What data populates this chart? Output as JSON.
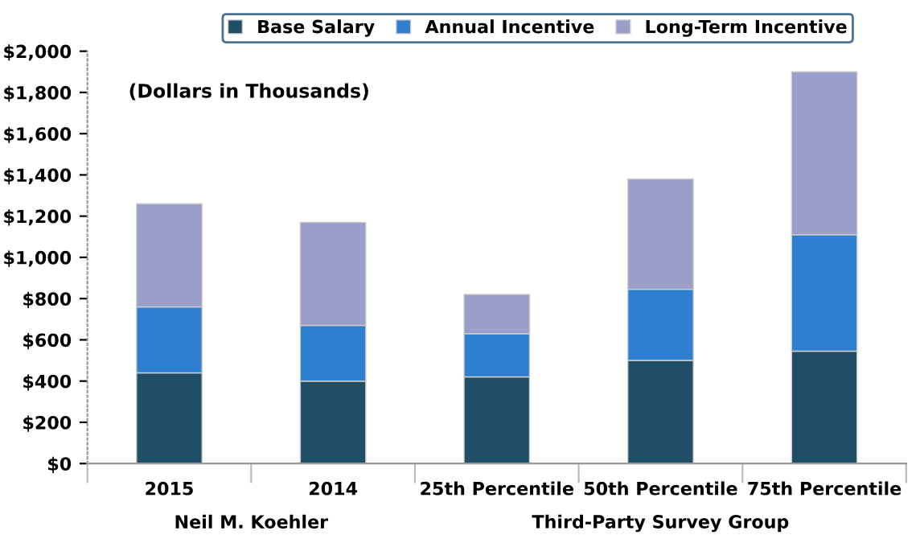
{
  "chart_data": {
    "type": "bar",
    "stacked": true,
    "categories": [
      "2015",
      "2014",
      "25th Percentile",
      "50th Percentile",
      "75th Percentile"
    ],
    "series": [
      {
        "name": "Base Salary",
        "color": "#1f4e66",
        "values": [
          440,
          400,
          420,
          500,
          545
        ]
      },
      {
        "name": "Annual Incentive",
        "color": "#2f7fd0",
        "values": [
          320,
          270,
          210,
          345,
          565
        ]
      },
      {
        "name": "Long-Term Incentive",
        "color": "#9a9ec8",
        "values": [
          500,
          500,
          190,
          535,
          790
        ]
      }
    ],
    "ylim": [
      0,
      2000
    ],
    "yticks": [
      {
        "value": 0,
        "label": "$0"
      },
      {
        "value": 200,
        "label": "$200"
      },
      {
        "value": 400,
        "label": "$400"
      },
      {
        "value": 600,
        "label": "$600"
      },
      {
        "value": 800,
        "label": "$800"
      },
      {
        "value": 1000,
        "label": "$1,000"
      },
      {
        "value": 1200,
        "label": "$1,200"
      },
      {
        "value": 1400,
        "label": "$1,400"
      },
      {
        "value": 1600,
        "label": "$1,600"
      },
      {
        "value": 1800,
        "label": "$1,800"
      },
      {
        "value": 2000,
        "label": "$2,000"
      }
    ],
    "annotations": [
      "(Dollars in Thousands)",
      "Neil M. Koehler",
      "Third-Party Survey Group"
    ],
    "grid": false,
    "legend": "top"
  }
}
